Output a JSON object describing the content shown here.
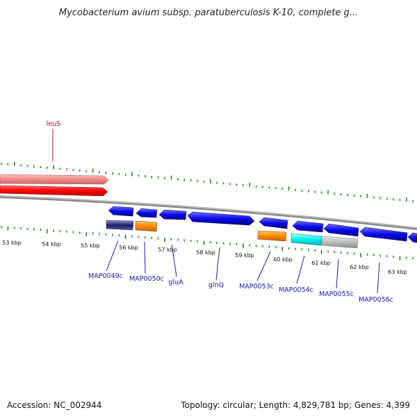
{
  "title": "Mycobacterium avium subsp. paratuberculosis K-10, complete g...",
  "footer": {
    "accession": "Accession: NC_002944",
    "summary": "Topology: circular; Length: 4,829,781 bp; Genes: 4,399"
  },
  "top_strand_label": "leuS",
  "kbp_labels": [
    "53 kbp",
    "54 kbp",
    "55 kbp",
    "56 kbp",
    "57 kbp",
    "58 kbp",
    "59 kbp",
    "60 kbp",
    "61 kbp",
    "62 kbp",
    "63 kbp"
  ],
  "gene_labels": [
    "MAP0049c",
    "MAP0050c",
    "gluA",
    "glnQ",
    "MAP0053c",
    "MAP0054c",
    "MAP0055c",
    "MAP0056c"
  ],
  "colors": {
    "gene_blue": "#0a0ae6",
    "gene_red": "#ff0000",
    "gene_pink": "#f08a8a",
    "orange": "#ff8c00",
    "cyan": "#00f0f0",
    "gray": "#bdbdbd",
    "tick_green": "#1a8a1a",
    "label_blue": "#1a1ab0",
    "label_red": "#c0001a"
  }
}
